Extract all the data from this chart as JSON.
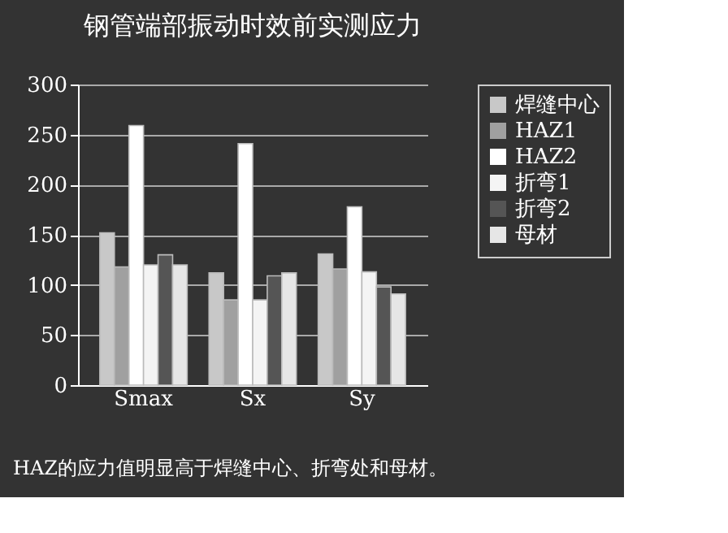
{
  "chart_data": {
    "type": "bar",
    "title": "钢管端部振动时效前实测应力",
    "categories": [
      "Smax",
      "Sx",
      "Sy"
    ],
    "series": [
      {
        "name": "焊缝中心",
        "color": "#c8c8c8",
        "values": [
          152,
          112,
          131
        ]
      },
      {
        "name": "HAZ1",
        "color": "#a0a0a0",
        "values": [
          118,
          85,
          116
        ]
      },
      {
        "name": "HAZ2",
        "color": "#ffffff",
        "values": [
          259,
          241,
          178
        ]
      },
      {
        "name": "折弯1",
        "color": "#f4f4f4",
        "values": [
          120,
          85,
          113
        ]
      },
      {
        "name": "折弯2",
        "color": "#555555",
        "values": [
          130,
          109,
          98
        ]
      },
      {
        "name": "母材",
        "color": "#e6e6e6",
        "values": [
          120,
          112,
          91
        ]
      }
    ],
    "ylim": [
      0,
      300
    ],
    "yticks": [
      0,
      50,
      100,
      150,
      200,
      250,
      300
    ],
    "grid": "y",
    "legend": "right",
    "annotations": [
      "HAZ的应力值明显高于焊缝中心、折弯处和母材。"
    ]
  }
}
